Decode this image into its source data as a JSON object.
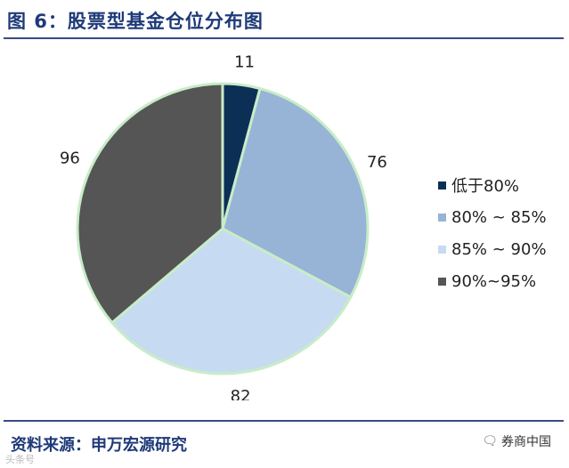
{
  "header": {
    "title": "图 6：股票型基金仓位分布图"
  },
  "footer": {
    "source": "资料来源：申万宏源研究",
    "brand": "券商中国",
    "watermark": "头条号"
  },
  "chart_data": {
    "type": "pie",
    "categories": [
      "低于80%",
      "80% ~ 85%",
      "85% ~ 90%",
      "90%~95%"
    ],
    "values": [
      11,
      76,
      82,
      96
    ],
    "colors": [
      "#0b2f55",
      "#97b3d6",
      "#c6dbf1",
      "#555555"
    ],
    "edge_color": "#c8ecc8",
    "legend": "right"
  }
}
